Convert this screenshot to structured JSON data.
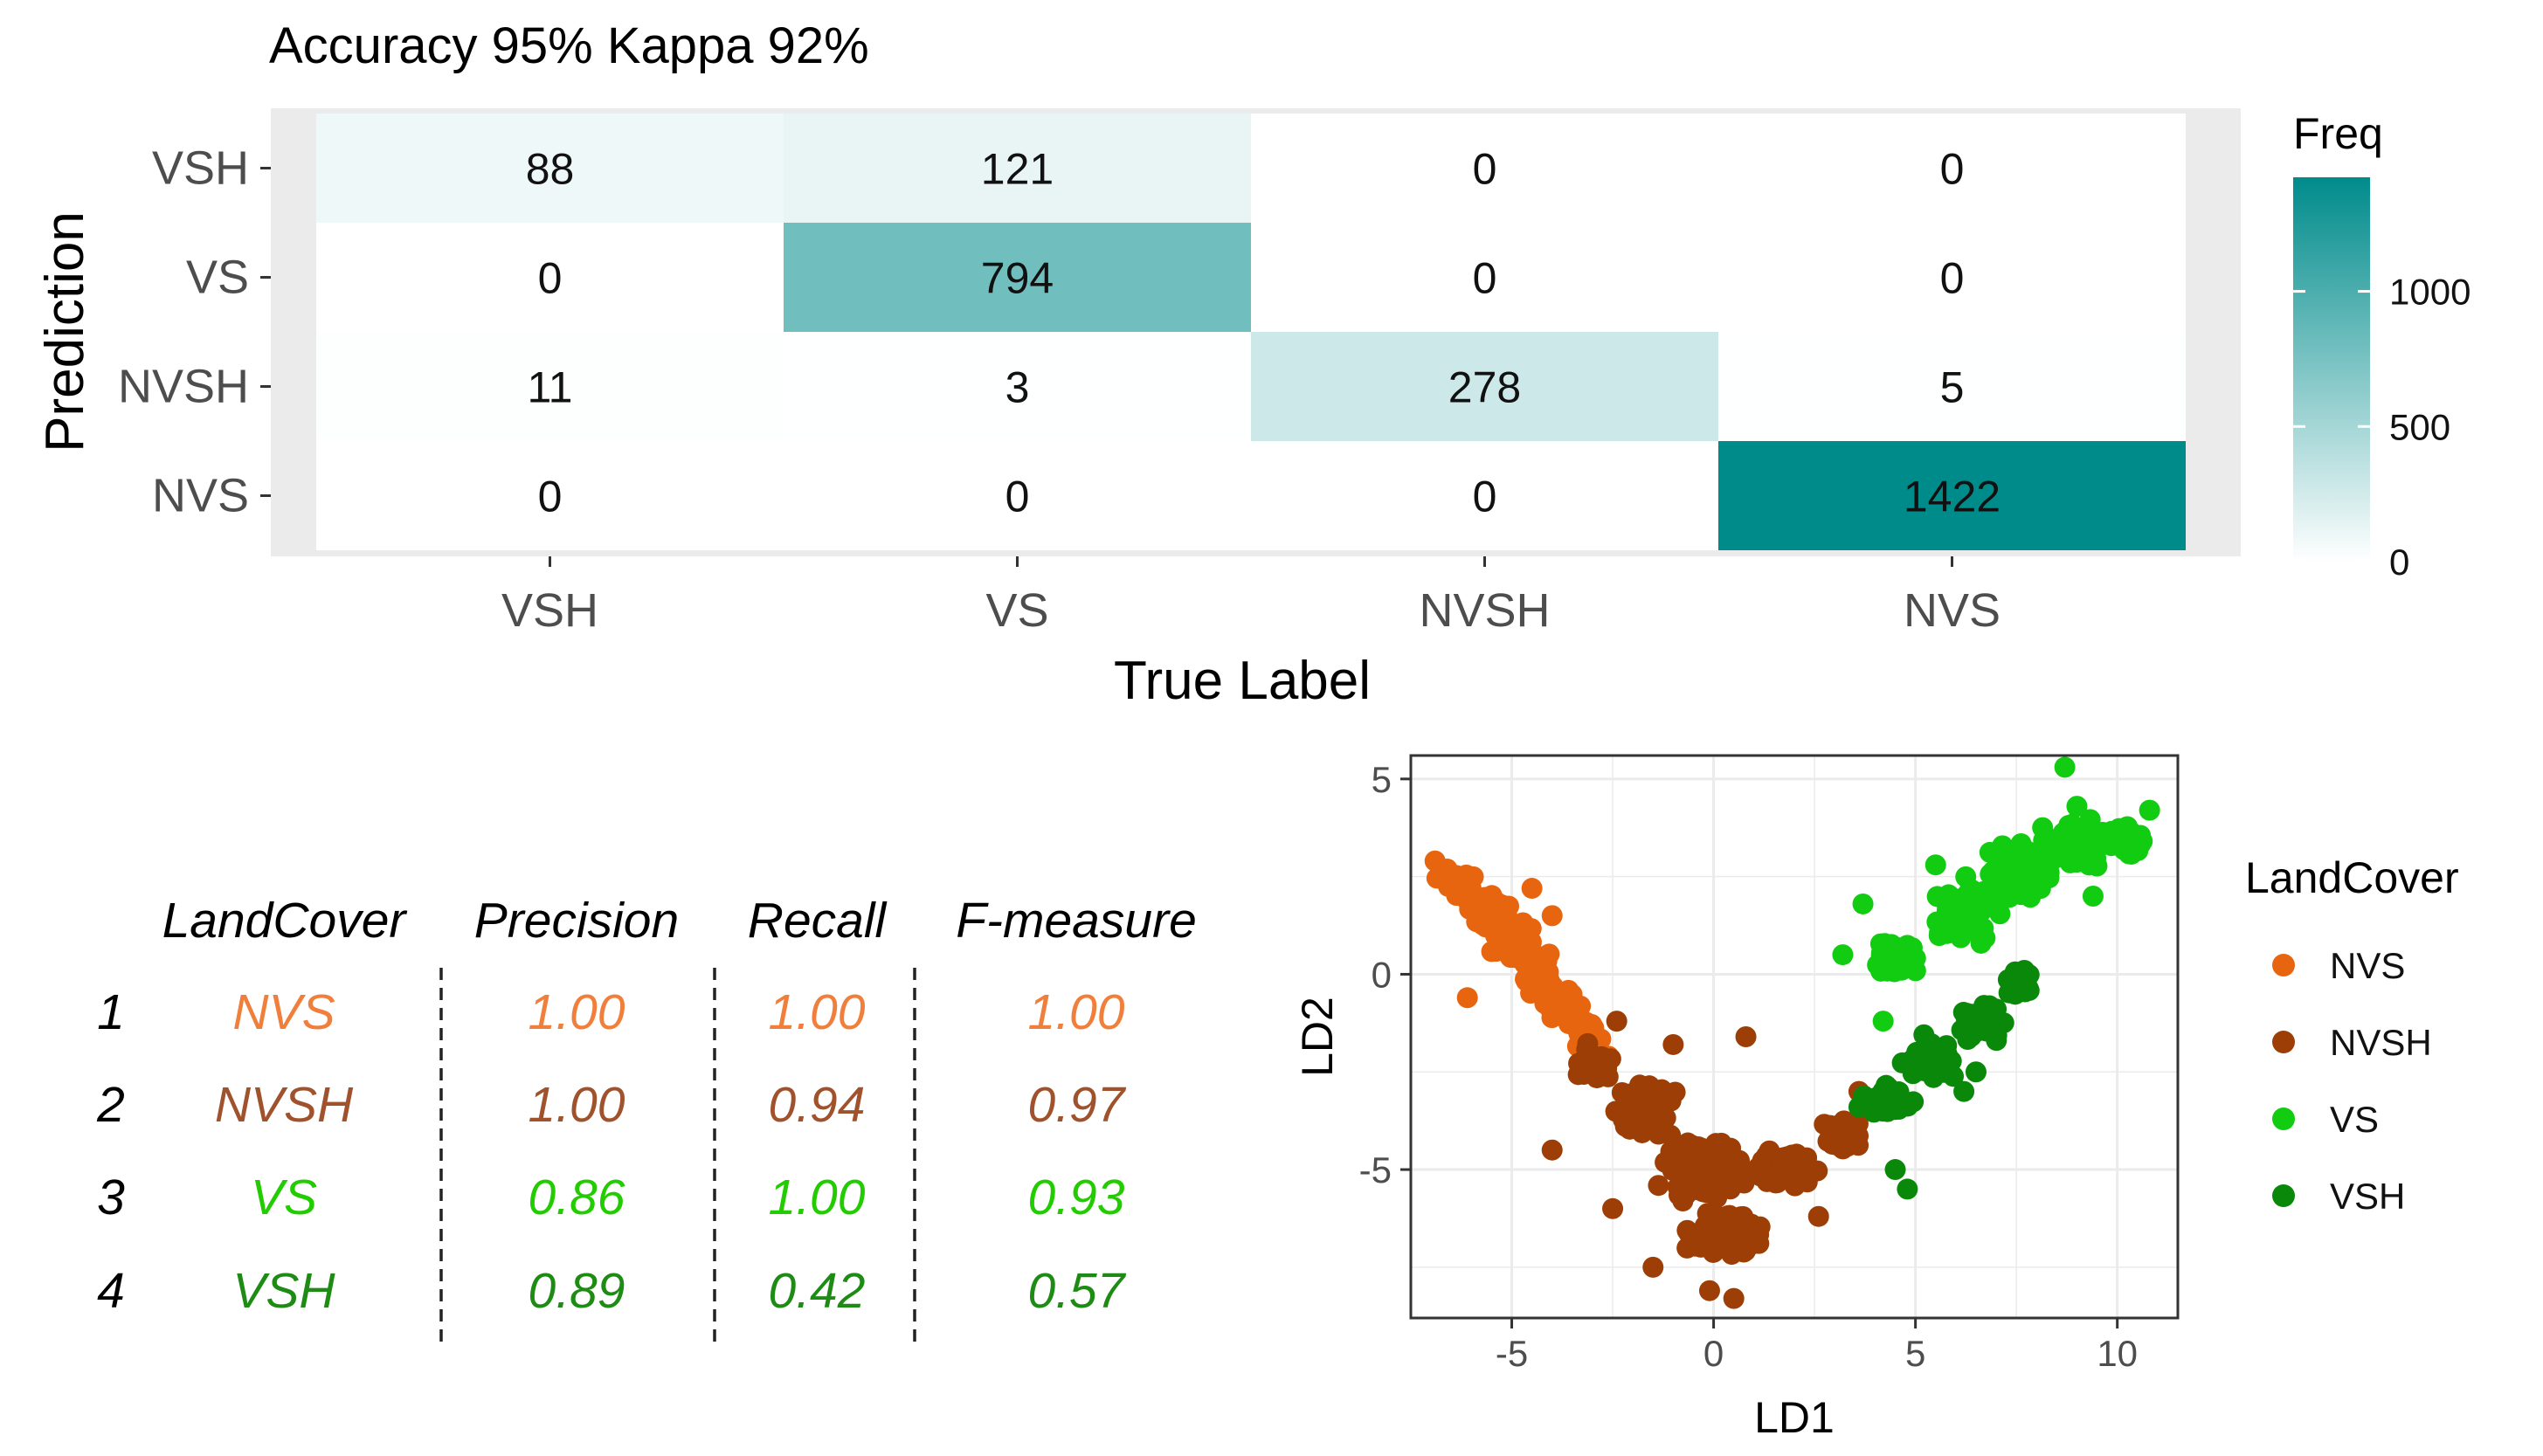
{
  "chart_data": [
    {
      "type": "heatmap",
      "title": "Accuracy 95% Kappa 92%",
      "xlabel": "True Label",
      "ylabel": "Prediction",
      "x_categories": [
        "VSH",
        "VS",
        "NVSH",
        "NVS"
      ],
      "y_categories": [
        "VSH",
        "VS",
        "NVSH",
        "NVS"
      ],
      "matrix": [
        [
          88,
          121,
          0,
          0
        ],
        [
          0,
          794,
          0,
          0
        ],
        [
          11,
          3,
          278,
          5
        ],
        [
          0,
          0,
          0,
          1422
        ]
      ],
      "legend": {
        "title": "Freq",
        "ticks": [
          0,
          500,
          1000
        ],
        "range": [
          0,
          1422
        ],
        "low_color": "#ffffff",
        "high_color": "#008B8B"
      }
    },
    {
      "type": "table",
      "columns": [
        "",
        "LandCover",
        "Precision",
        "Recall",
        "F-measure"
      ],
      "rows": [
        {
          "index": "1",
          "LandCover": "NVS",
          "Precision": "1.00",
          "Recall": "1.00",
          "F-measure": "1.00",
          "color": "#F07F3C"
        },
        {
          "index": "2",
          "LandCover": "NVSH",
          "Precision": "1.00",
          "Recall": "0.94",
          "F-measure": "0.97",
          "color": "#A0522D"
        },
        {
          "index": "3",
          "LandCover": "VS",
          "Precision": "0.86",
          "Recall": "1.00",
          "F-measure": "0.93",
          "color": "#22CC00"
        },
        {
          "index": "4",
          "LandCover": "VSH",
          "Precision": "0.89",
          "Recall": "0.42",
          "F-measure": "0.57",
          "color": "#1E8C14"
        }
      ]
    },
    {
      "type": "scatter",
      "xlabel": "LD1",
      "ylabel": "LD2",
      "xlim": [
        -7.5,
        11.5
      ],
      "ylim": [
        -8.8,
        5.6
      ],
      "xticks": [
        -5,
        0,
        5,
        10
      ],
      "yticks": [
        -5,
        0,
        5
      ],
      "grid": true,
      "legend_title": "LandCover",
      "series": [
        {
          "name": "NVS",
          "color": "#E8650F",
          "clusters": [
            [
              -6.3,
              2.3,
              0.55,
              0.45,
              40
            ],
            [
              -5.6,
              1.6,
              0.6,
              0.5,
              45
            ],
            [
              -4.9,
              0.8,
              0.6,
              0.55,
              45
            ],
            [
              -4.3,
              0.0,
              0.55,
              0.55,
              40
            ],
            [
              -3.7,
              -0.8,
              0.5,
              0.5,
              35
            ],
            [
              -3.1,
              -1.6,
              0.45,
              0.45,
              25
            ]
          ],
          "points": [
            [
              -6.1,
              -0.6
            ],
            [
              -6.9,
              2.9
            ],
            [
              -4.5,
              2.2
            ],
            [
              -4.0,
              1.5
            ],
            [
              -2.6,
              -2.1
            ]
          ]
        },
        {
          "name": "NVSH",
          "color": "#9C3E05",
          "clusters": [
            [
              -3.0,
              -2.3,
              0.6,
              0.6,
              30
            ],
            [
              -1.8,
              -3.5,
              0.9,
              0.8,
              60
            ],
            [
              -0.3,
              -5.0,
              1.2,
              0.9,
              130
            ],
            [
              0.3,
              -6.6,
              1.0,
              0.8,
              70
            ],
            [
              1.8,
              -5.0,
              0.9,
              0.7,
              60
            ],
            [
              3.2,
              -4.2,
              0.6,
              0.6,
              35
            ]
          ],
          "points": [
            [
              -2.4,
              -1.2
            ],
            [
              -1.0,
              -1.8
            ],
            [
              0.8,
              -1.6
            ],
            [
              -4.0,
              -4.5
            ],
            [
              -2.5,
              -6.0
            ],
            [
              -0.1,
              -8.1
            ],
            [
              0.5,
              -8.3
            ],
            [
              2.6,
              -6.2
            ],
            [
              3.6,
              -3.0
            ],
            [
              5.6,
              -2.5
            ],
            [
              -1.5,
              -7.5
            ]
          ]
        },
        {
          "name": "VS",
          "color": "#11CC11",
          "clusters": [
            [
              4.5,
              0.4,
              0.7,
              0.6,
              40
            ],
            [
              6.2,
              1.6,
              0.9,
              0.8,
              90
            ],
            [
              7.6,
              2.6,
              0.9,
              0.8,
              110
            ],
            [
              9.0,
              3.3,
              0.9,
              0.7,
              90
            ],
            [
              10.2,
              3.4,
              0.5,
              0.5,
              30
            ]
          ],
          "points": [
            [
              8.7,
              5.3
            ],
            [
              9.0,
              4.3
            ],
            [
              10.8,
              4.2
            ],
            [
              3.2,
              0.5
            ],
            [
              3.7,
              1.8
            ],
            [
              4.2,
              -1.2
            ],
            [
              5.5,
              2.8
            ],
            [
              9.4,
              2.0
            ]
          ]
        },
        {
          "name": "VSH",
          "color": "#0A880A",
          "clusters": [
            [
              4.3,
              -3.2,
              0.6,
              0.5,
              35
            ],
            [
              5.4,
              -2.2,
              0.7,
              0.6,
              50
            ],
            [
              6.6,
              -1.2,
              0.7,
              0.6,
              55
            ],
            [
              7.6,
              -0.2,
              0.5,
              0.5,
              25
            ]
          ],
          "points": [
            [
              4.5,
              -5.0
            ],
            [
              4.8,
              -5.5
            ],
            [
              3.6,
              -3.4
            ],
            [
              6.2,
              -3.0
            ],
            [
              6.5,
              -2.5
            ]
          ]
        }
      ]
    }
  ]
}
